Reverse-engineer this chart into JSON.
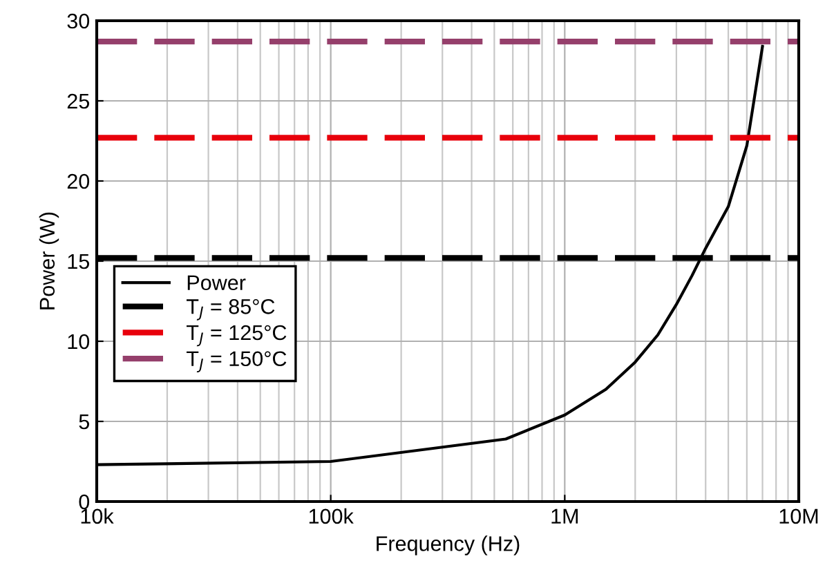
{
  "chart_data": {
    "type": "line",
    "xlabel": "Frequency (Hz)",
    "ylabel": "Power (W)",
    "log": "x",
    "xlim": [
      10000,
      10000000
    ],
    "xticks": [
      {
        "value": 10000,
        "label": "10k"
      },
      {
        "value": 100000,
        "label": "100k"
      },
      {
        "value": 1000000,
        "label": "1M"
      },
      {
        "value": 10000000,
        "label": "10M"
      }
    ],
    "ylim": [
      0,
      30
    ],
    "yticks": [
      0,
      5,
      10,
      15,
      20,
      25,
      30
    ],
    "grid": true,
    "legend": "center left",
    "series": [
      {
        "name": "Power",
        "color": "#000000",
        "line_style": "solid",
        "x": [
          10000,
          100000,
          560000,
          1000000,
          1500000,
          2000000,
          2500000,
          3000000,
          3500000,
          4000000,
          5000000,
          6000000,
          7000000
        ],
        "values": [
          2.3,
          2.5,
          3.9,
          5.4,
          7.0,
          8.7,
          10.4,
          12.3,
          14.1,
          15.8,
          18.4,
          22.2,
          28.4
        ]
      },
      {
        "name": "T$_{J}$ = 85°C",
        "color": "#000000",
        "line_style": "dashed",
        "x": [
          10000,
          10000000
        ],
        "values": [
          15.2,
          15.2
        ]
      },
      {
        "name": "T$_{J}$ = 125°C",
        "color": "#e8000b",
        "line_style": "dashed",
        "x": [
          10000,
          10000000
        ],
        "values": [
          22.7,
          22.7
        ]
      },
      {
        "name": "T$_{J}$ = 150°C",
        "color": "#953f6b",
        "line_style": "dashed",
        "x": [
          10000,
          10000000
        ],
        "values": [
          28.7,
          28.7
        ]
      }
    ]
  }
}
